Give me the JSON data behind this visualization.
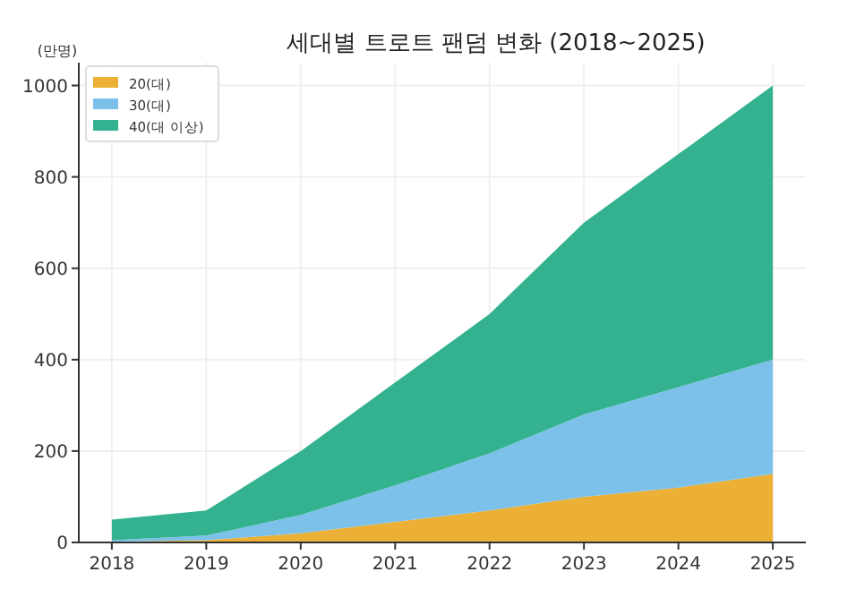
{
  "chart_data": {
    "type": "area",
    "title": "세대별 트로트 팬덤 변화 (2018~2025)",
    "ylabel": "(만명)",
    "x": [
      2018,
      2019,
      2020,
      2021,
      2022,
      2023,
      2024,
      2025
    ],
    "series": [
      {
        "name": "20(대)",
        "color": "#ebb035",
        "values": [
          2,
          5,
          20,
          45,
          70,
          100,
          120,
          150
        ]
      },
      {
        "name": "30(대)",
        "color": "#7bc1ea",
        "values": [
          3,
          10,
          40,
          80,
          125,
          180,
          220,
          250
        ]
      },
      {
        "name": "40(대 이상)",
        "color": "#34b28f",
        "values": [
          45,
          55,
          140,
          225,
          305,
          420,
          510,
          600
        ]
      }
    ],
    "stacked": true,
    "xlim": [
      2017.65,
      2025.35
    ],
    "ylim": [
      0,
      1050
    ],
    "xticks": [
      2018,
      2019,
      2020,
      2021,
      2022,
      2023,
      2024,
      2025
    ],
    "yticks": [
      0,
      200,
      400,
      600,
      800,
      1000
    ],
    "grid": true,
    "legend": "top left"
  }
}
